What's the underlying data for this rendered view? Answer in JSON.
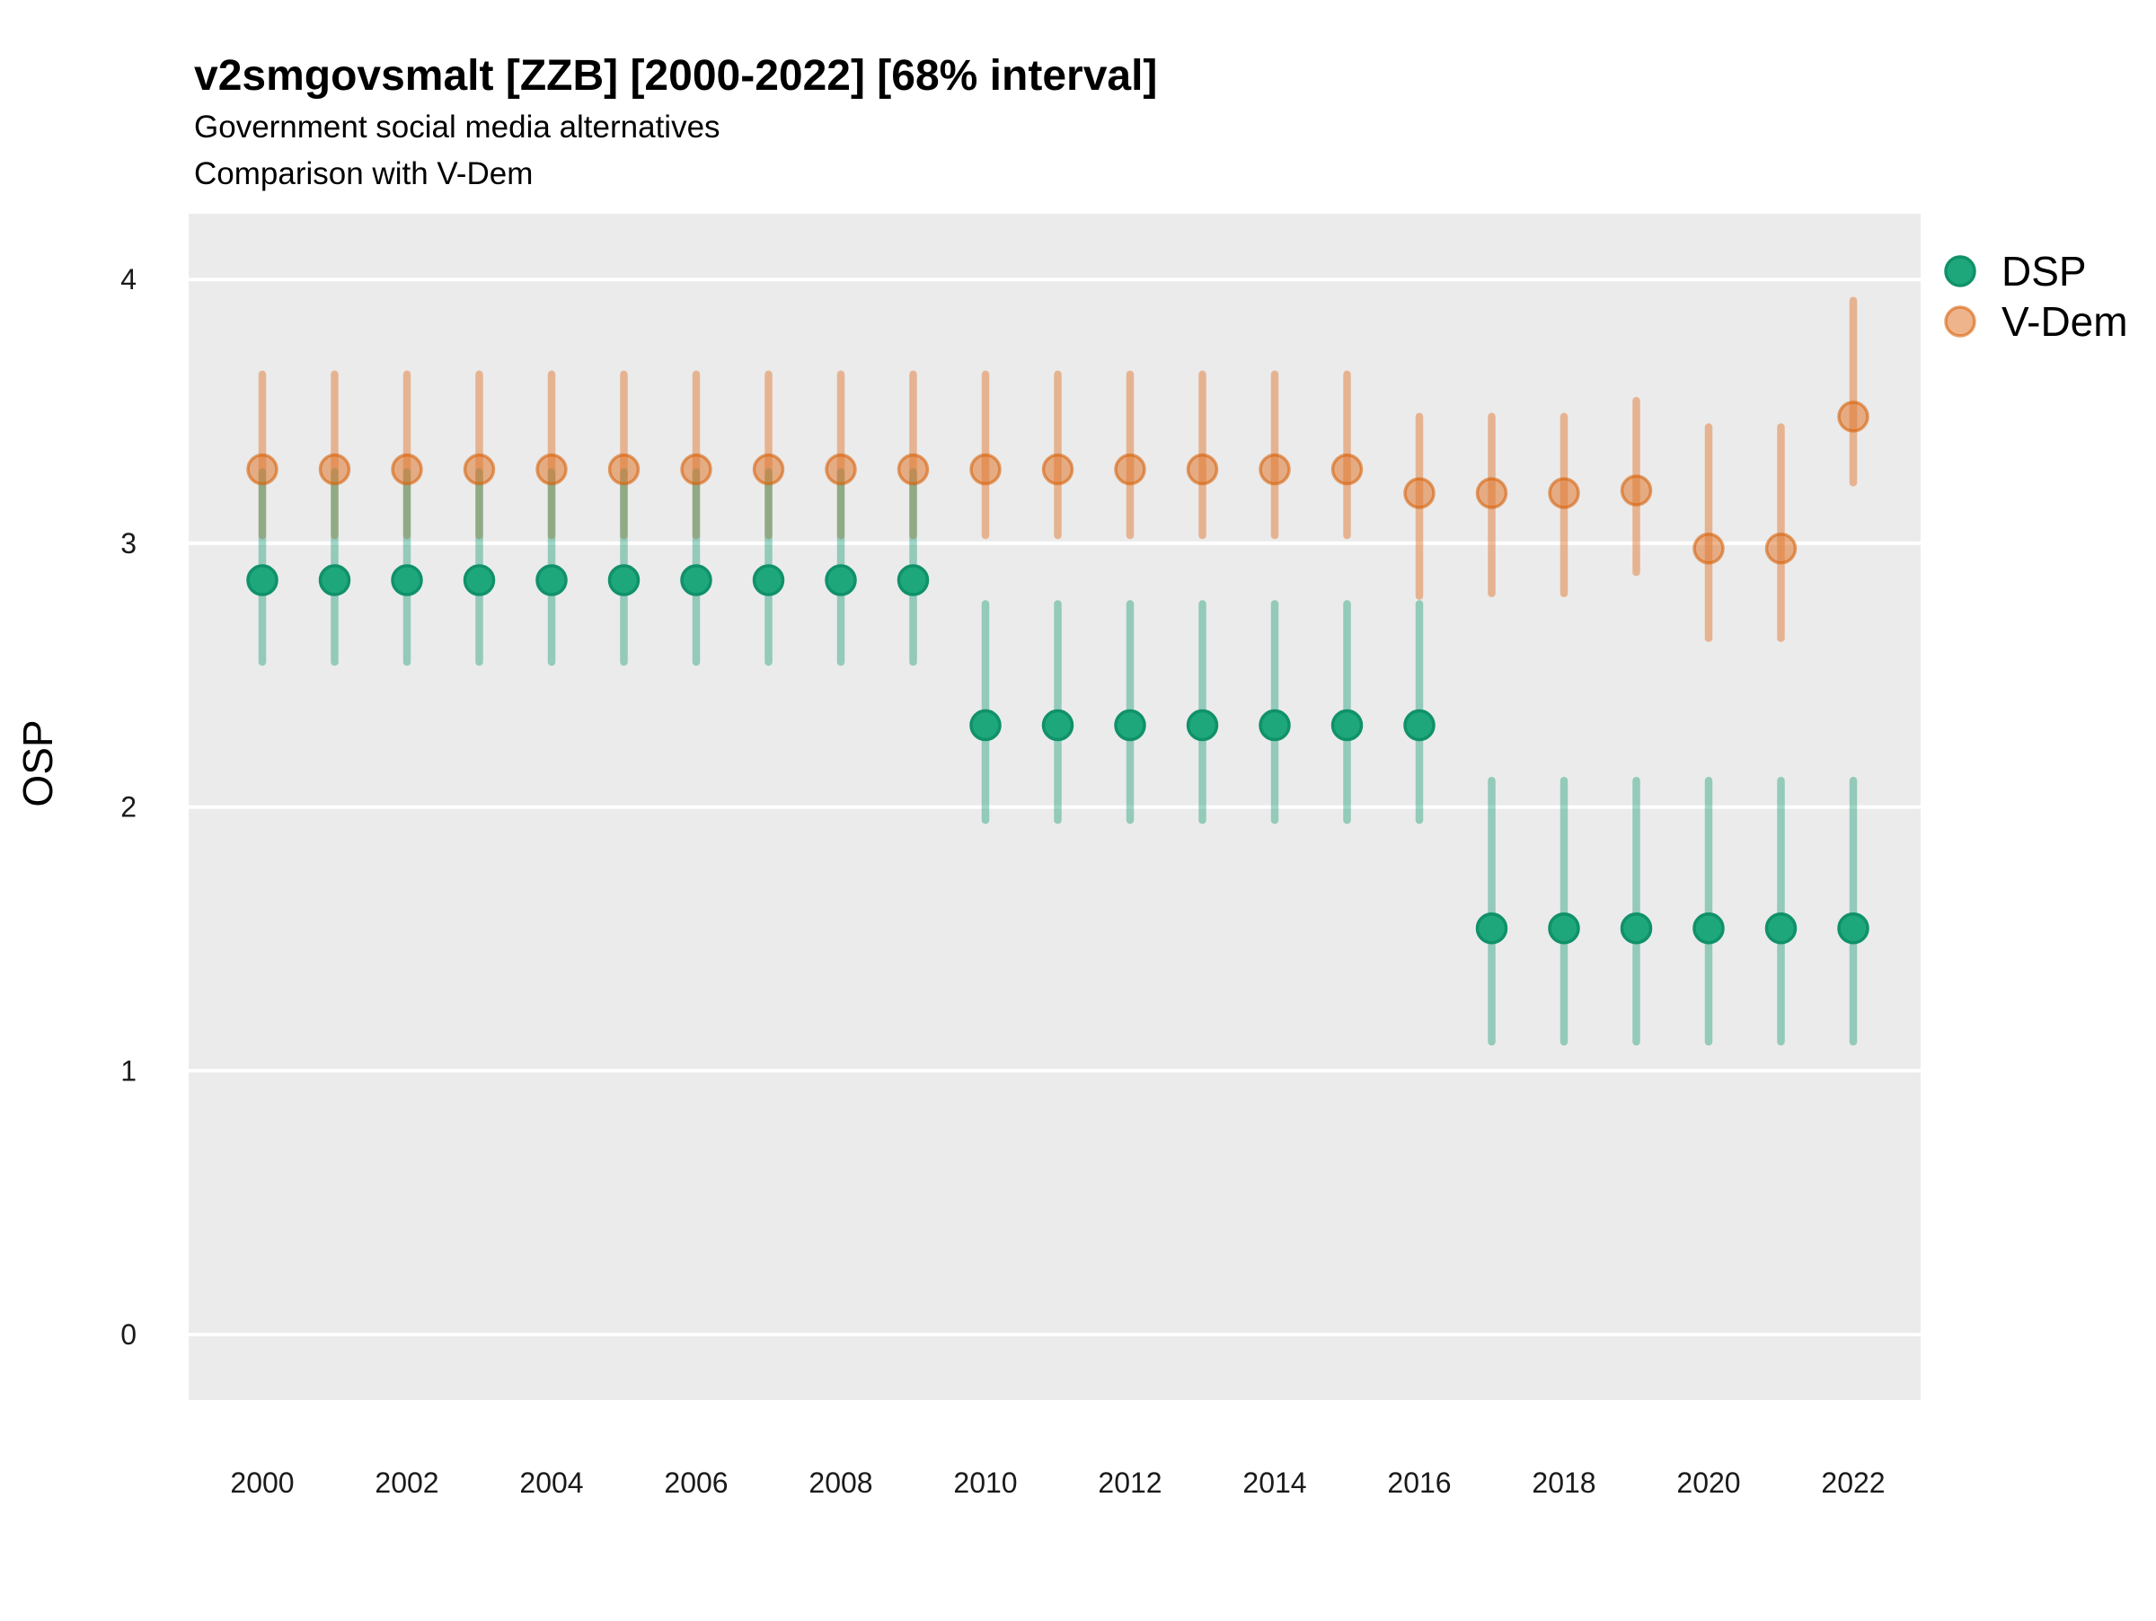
{
  "header": {
    "title": "v2smgovsmalt [ZZB] [2000-2022] [68% interval]",
    "subtitle1": "Government social media alternatives",
    "subtitle2": "Comparison with V-Dem"
  },
  "axes": {
    "y_title": "OSP",
    "y_ticks": [
      "4",
      "3",
      "2",
      "1",
      "0"
    ],
    "x_ticks": [
      "2000",
      "2002",
      "2004",
      "2006",
      "2008",
      "2010",
      "2012",
      "2014",
      "2016",
      "2018",
      "2020",
      "2022"
    ]
  },
  "legend": {
    "items": [
      {
        "label": "DSP"
      },
      {
        "label": "V-Dem"
      }
    ]
  },
  "chart_data": {
    "type": "pointrange",
    "title": "v2smgovsmalt [ZZB] [2000-2022] [68% interval]",
    "subtitle": [
      "Government social media alternatives",
      "Comparison with V-Dem"
    ],
    "interval": "68%",
    "xlabel": "",
    "ylabel": "OSP",
    "ylim": [
      -0.25,
      4.25
    ],
    "yticks": [
      4,
      3,
      2,
      1,
      0
    ],
    "xticks": [
      2000,
      2002,
      2004,
      2006,
      2008,
      2010,
      2012,
      2014,
      2016,
      2018,
      2020,
      2022
    ],
    "grid": "horizontal-major-only",
    "panel_background": "#ebebeb",
    "gridline_color": "#ffffff",
    "legend_position": "right-top",
    "x": [
      2000,
      2001,
      2002,
      2003,
      2004,
      2005,
      2006,
      2007,
      2008,
      2009,
      2010,
      2011,
      2012,
      2013,
      2014,
      2015,
      2016,
      2017,
      2018,
      2019,
      2020,
      2021,
      2022
    ],
    "series": [
      {
        "name": "DSP",
        "color": "#1b9e77",
        "styles": {
          "bar": "rgba(27,158,119,0.42)",
          "point_fill": "#1ea77a",
          "point_stroke": "#10916a"
        },
        "mean": [
          2.86,
          2.86,
          2.86,
          2.86,
          2.86,
          2.86,
          2.86,
          2.86,
          2.86,
          2.86,
          2.31,
          2.31,
          2.31,
          2.31,
          2.31,
          2.31,
          2.31,
          1.54,
          1.54,
          1.54,
          1.54,
          1.54,
          1.54
        ],
        "lower": [
          2.55,
          2.55,
          2.55,
          2.55,
          2.55,
          2.55,
          2.55,
          2.55,
          2.55,
          2.55,
          1.95,
          1.95,
          1.95,
          1.95,
          1.95,
          1.95,
          1.95,
          1.11,
          1.11,
          1.11,
          1.11,
          1.11,
          1.11
        ],
        "upper": [
          3.27,
          3.27,
          3.27,
          3.27,
          3.27,
          3.27,
          3.27,
          3.27,
          3.27,
          3.27,
          2.77,
          2.77,
          2.77,
          2.77,
          2.77,
          2.77,
          2.77,
          2.1,
          2.1,
          2.1,
          2.1,
          2.1,
          2.1
        ]
      },
      {
        "name": "V-Dem",
        "color": "#e0762e",
        "styles": {
          "bar": "rgba(224,118,46,0.48)",
          "point_fill": "rgba(224,118,46,0.55)",
          "point_stroke": "rgba(215,98,10,0.6)"
        },
        "mean": [
          3.28,
          3.28,
          3.28,
          3.28,
          3.28,
          3.28,
          3.28,
          3.28,
          3.28,
          3.28,
          3.28,
          3.28,
          3.28,
          3.28,
          3.28,
          3.28,
          3.19,
          3.19,
          3.19,
          3.2,
          2.98,
          2.98,
          3.48
        ],
        "lower": [
          3.03,
          3.03,
          3.03,
          3.03,
          3.03,
          3.03,
          3.03,
          3.03,
          3.03,
          3.03,
          3.03,
          3.03,
          3.03,
          3.03,
          3.03,
          3.03,
          2.8,
          2.81,
          2.81,
          2.89,
          2.64,
          2.64,
          3.23
        ],
        "upper": [
          3.64,
          3.64,
          3.64,
          3.64,
          3.64,
          3.64,
          3.64,
          3.64,
          3.64,
          3.64,
          3.64,
          3.64,
          3.64,
          3.64,
          3.64,
          3.64,
          3.48,
          3.48,
          3.48,
          3.54,
          3.44,
          3.44,
          3.92
        ]
      }
    ]
  }
}
